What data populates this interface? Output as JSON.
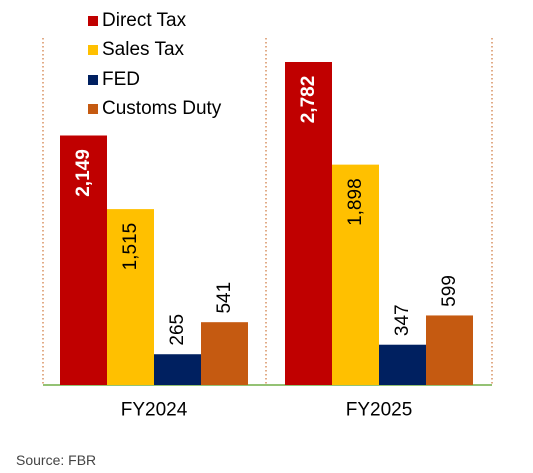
{
  "chart_data": {
    "type": "bar",
    "title": "",
    "xlabel": "",
    "ylabel": "",
    "categories": [
      "FY2024",
      "FY2025"
    ],
    "series": [
      {
        "name": "Direct Tax",
        "values": [
          2149,
          2782
        ],
        "labels": [
          "2,149",
          "2,782"
        ],
        "color": "#c00000",
        "label_color": "#ffffff",
        "label_bold": true
      },
      {
        "name": "Sales Tax",
        "values": [
          1515,
          1898
        ],
        "labels": [
          "1,515",
          "1,898"
        ],
        "color": "#ffc000",
        "label_color": "#000000",
        "label_bold": false
      },
      {
        "name": "FED",
        "values": [
          265,
          347
        ],
        "labels": [
          "265",
          "347"
        ],
        "color": "#002060",
        "label_color": "#000000",
        "label_bold": false
      },
      {
        "name": "Customs Duty",
        "values": [
          541,
          599
        ],
        "labels": [
          "541",
          "599"
        ],
        "color": "#c55a11",
        "label_color": "#000000",
        "label_bold": false
      }
    ],
    "ylim": [
      0,
      2800
    ],
    "grid": false,
    "legend_position": "top-left",
    "baseline_color": "#70ad47",
    "divider_color": "#c55a11"
  },
  "footer": {
    "source": "Source: FBR"
  }
}
